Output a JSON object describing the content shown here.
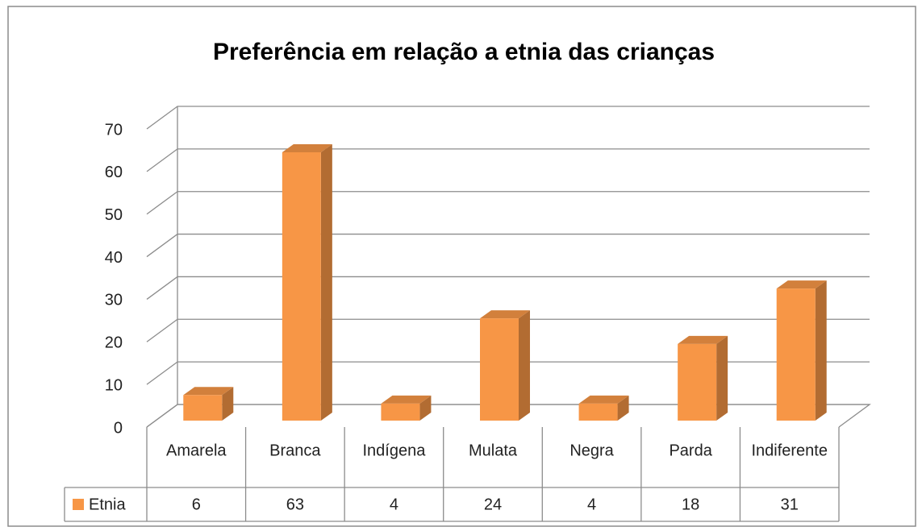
{
  "chart_data": {
    "type": "bar3d",
    "title": "Preferência em relação a etnia das crianças",
    "categories": [
      "Amarela",
      "Branca",
      "Indígena",
      "Mulata",
      "Negra",
      "Parda",
      "Indiferente"
    ],
    "series": [
      {
        "name": "Etnia",
        "color": "#f79646",
        "values": [
          6,
          63,
          4,
          24,
          4,
          18,
          31
        ]
      }
    ],
    "ylim": [
      0,
      70
    ],
    "yticks": [
      0,
      10,
      20,
      30,
      40,
      50,
      60,
      70
    ],
    "grid": true,
    "data_table": true
  }
}
